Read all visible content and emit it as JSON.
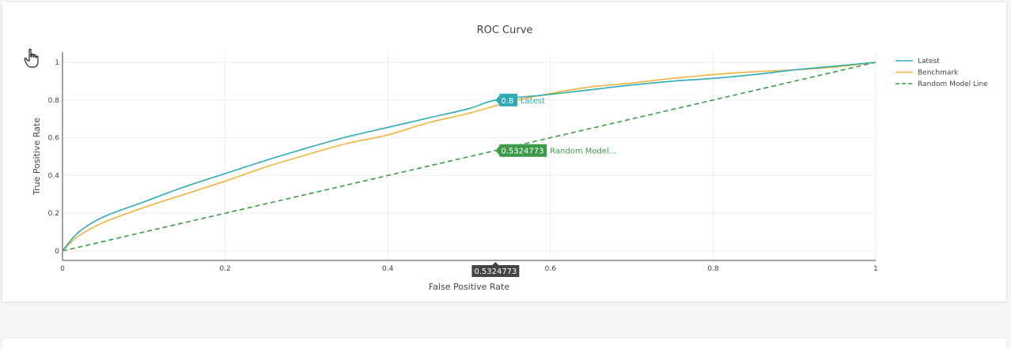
{
  "chart_data": {
    "type": "line",
    "title": "ROC Curve",
    "xlabel": "False Positive Rate",
    "ylabel": "True Positive Rate",
    "xlim": [
      0,
      1
    ],
    "ylim": [
      0,
      1
    ],
    "grid": true,
    "legend_placement": "top-right, outside plot",
    "x_ticks": [
      "0",
      "0.2",
      "0.4",
      "0.6",
      "0.8",
      "1"
    ],
    "y_ticks": [
      "0",
      "0.2",
      "0.4",
      "0.6",
      "0.8",
      "1"
    ],
    "series": [
      {
        "name": "Latest",
        "color": "#2eaab5",
        "dash": "solid",
        "points": [
          [
            0,
            0
          ],
          [
            0.02,
            0.1
          ],
          [
            0.05,
            0.18
          ],
          [
            0.1,
            0.26
          ],
          [
            0.15,
            0.34
          ],
          [
            0.2,
            0.41
          ],
          [
            0.25,
            0.48
          ],
          [
            0.3,
            0.545
          ],
          [
            0.35,
            0.605
          ],
          [
            0.4,
            0.655
          ],
          [
            0.45,
            0.705
          ],
          [
            0.5,
            0.755
          ],
          [
            0.533,
            0.8
          ],
          [
            0.6,
            0.83
          ],
          [
            0.65,
            0.855
          ],
          [
            0.7,
            0.88
          ],
          [
            0.75,
            0.9
          ],
          [
            0.8,
            0.915
          ],
          [
            0.85,
            0.935
          ],
          [
            0.9,
            0.96
          ],
          [
            0.95,
            0.98
          ],
          [
            1,
            1
          ]
        ]
      },
      {
        "name": "Benchmark",
        "color": "#f0b43c",
        "dash": "solid",
        "points": [
          [
            0,
            0
          ],
          [
            0.02,
            0.08
          ],
          [
            0.05,
            0.15
          ],
          [
            0.1,
            0.23
          ],
          [
            0.15,
            0.3
          ],
          [
            0.2,
            0.37
          ],
          [
            0.25,
            0.445
          ],
          [
            0.3,
            0.51
          ],
          [
            0.35,
            0.57
          ],
          [
            0.4,
            0.615
          ],
          [
            0.45,
            0.68
          ],
          [
            0.5,
            0.73
          ],
          [
            0.55,
            0.79
          ],
          [
            0.6,
            0.835
          ],
          [
            0.65,
            0.87
          ],
          [
            0.7,
            0.89
          ],
          [
            0.75,
            0.915
          ],
          [
            0.8,
            0.935
          ],
          [
            0.85,
            0.95
          ],
          [
            0.9,
            0.96
          ],
          [
            0.95,
            0.975
          ],
          [
            1,
            1
          ]
        ]
      },
      {
        "name": "Random Model Line",
        "color": "#3d9a4a",
        "dash": "dashed",
        "points": [
          [
            0,
            0
          ],
          [
            1,
            1
          ]
        ]
      }
    ],
    "hover": {
      "x_value": "0.5324773",
      "labels": [
        {
          "series": "Latest",
          "value": "0.8",
          "text": "Latest",
          "y": 0.8,
          "color": "#2eaab5"
        },
        {
          "series": "Random Model Line",
          "value": "0.5324773",
          "text": "Random Model...",
          "y": 0.5324773,
          "color": "#3d9a4a"
        }
      ],
      "axis_value_label": "0.5324773"
    }
  },
  "cursor_icon": "hand-pointer-icon"
}
